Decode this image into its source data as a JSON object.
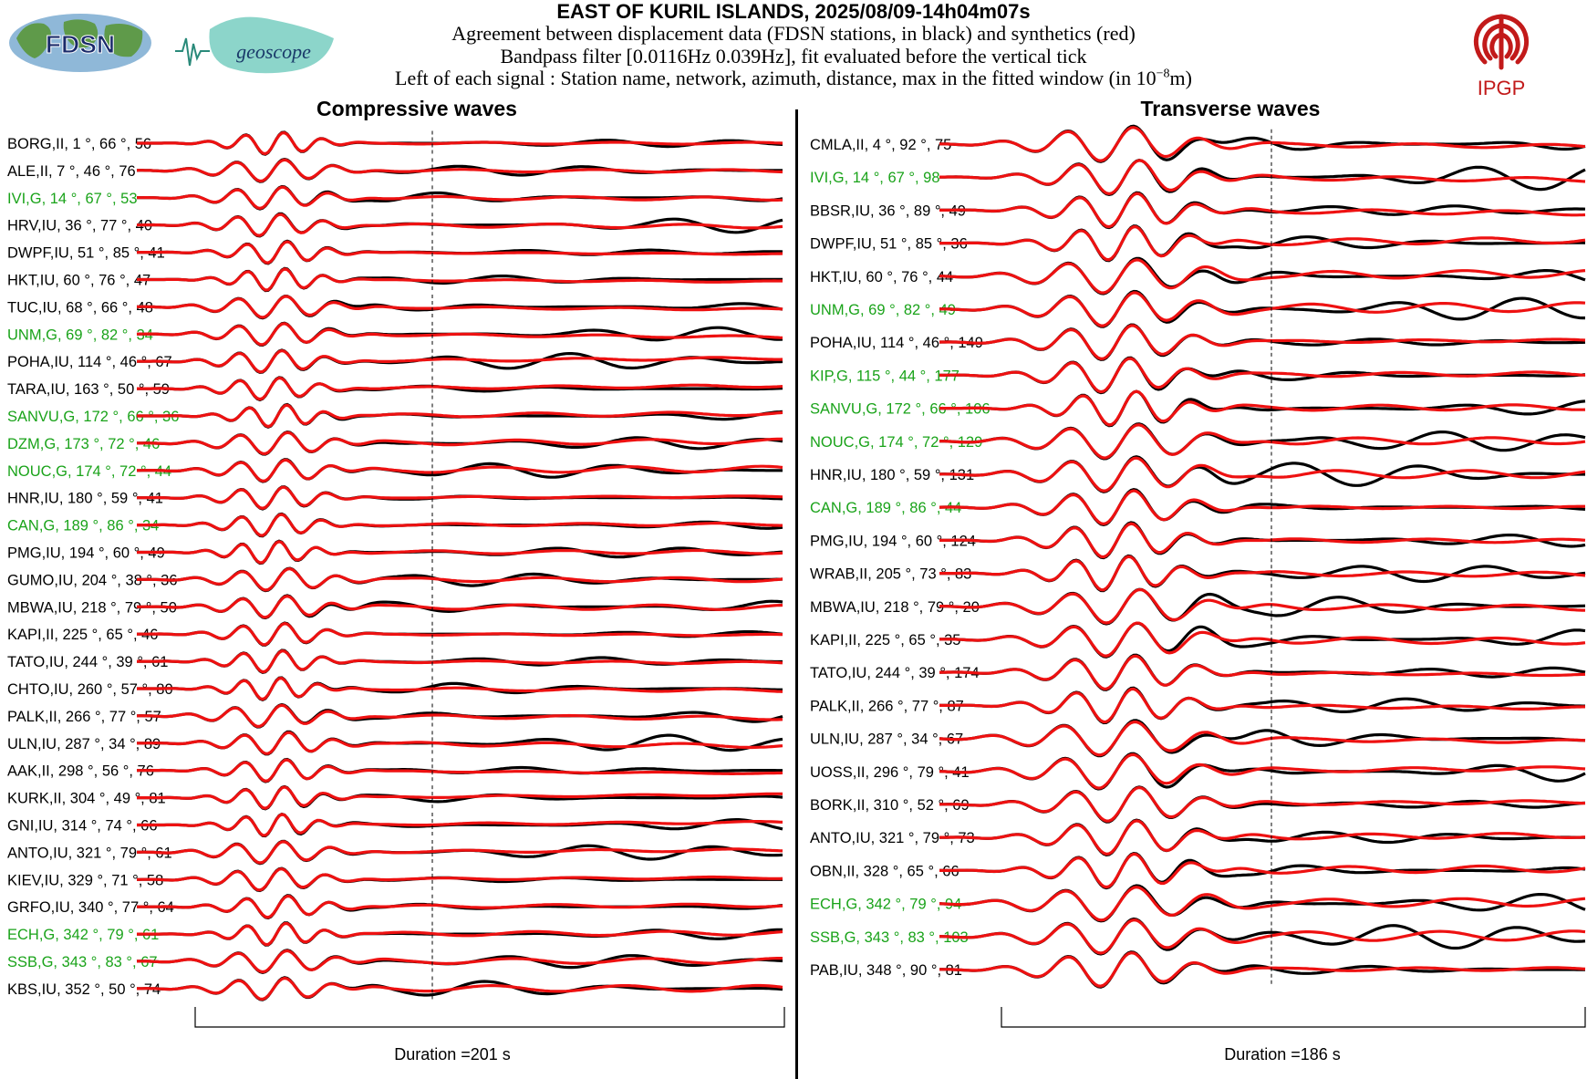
{
  "header": {
    "title": "EAST OF KURIL ISLANDS, 2025/08/09-14h04m07s",
    "line1": "Agreement between displacement data (FDSN stations, in black) and synthetics (red)",
    "line2": "Bandpass filter [0.0116Hz 0.039Hz], fit evaluated before the vertical tick",
    "line3_prefix": "Left of each signal : Station name, network, azimuth, distance, max in the fitted window (in 10",
    "line3_exp": "−8",
    "line3_suffix": "m)"
  },
  "logos": {
    "fdsn": "FDSN",
    "geoscope": "geoscope",
    "ipgp": "IPGP"
  },
  "colors": {
    "data": "#000000",
    "synthetic": "#ee1111",
    "geoscope_station": "#1aa31a",
    "other_station": "#000000",
    "ipgp": "#c21a1a"
  },
  "chart_data": [
    {
      "type": "line",
      "title": "Compressive waves",
      "duration_label": "Duration =201 s",
      "series": [
        {
          "name": "data",
          "color": "#000000"
        },
        {
          "name": "synthetics",
          "color": "#ee1111"
        }
      ],
      "stations": [
        {
          "label": "BORG,II, 1 °, 66 °, 56",
          "net": "II"
        },
        {
          "label": "ALE,II, 7 °, 46 °, 76",
          "net": "II"
        },
        {
          "label": "IVI,G, 14 °, 67 °, 53",
          "net": "G"
        },
        {
          "label": "HRV,IU, 36 °, 77 °, 40",
          "net": "IU"
        },
        {
          "label": "DWPF,IU, 51 °, 85 °, 41",
          "net": "IU"
        },
        {
          "label": "HKT,IU, 60 °, 76 °, 47",
          "net": "IU"
        },
        {
          "label": "TUC,IU, 68 °, 66 °, 48",
          "net": "IU"
        },
        {
          "label": "UNM,G, 69 °, 82 °, 34",
          "net": "G"
        },
        {
          "label": "POHA,IU, 114 °, 46 °, 67",
          "net": "IU"
        },
        {
          "label": "TARA,IU, 163 °, 50 °, 59",
          "net": "IU"
        },
        {
          "label": "SANVU,G, 172 °, 66 °, 36",
          "net": "G"
        },
        {
          "label": "DZM,G, 173 °, 72 °, 46",
          "net": "G"
        },
        {
          "label": "NOUC,G, 174 °, 72 °, 44",
          "net": "G"
        },
        {
          "label": "HNR,IU, 180 °, 59 °, 41",
          "net": "IU"
        },
        {
          "label": "CAN,G, 189 °, 86 °, 34",
          "net": "G"
        },
        {
          "label": "PMG,IU, 194 °, 60 °, 49",
          "net": "IU"
        },
        {
          "label": "GUMO,IU, 204 °, 38 °, 36",
          "net": "IU"
        },
        {
          "label": "MBWA,IU, 218 °, 79 °, 50",
          "net": "IU"
        },
        {
          "label": "KAPI,II, 225 °, 65 °, 46",
          "net": "II"
        },
        {
          "label": "TATO,IU, 244 °, 39 °, 61",
          "net": "IU"
        },
        {
          "label": "CHTO,IU, 260 °, 57 °, 80",
          "net": "IU"
        },
        {
          "label": "PALK,II, 266 °, 77 °, 57",
          "net": "II"
        },
        {
          "label": "ULN,IU, 287 °, 34 °, 89",
          "net": "IU"
        },
        {
          "label": "AAK,II, 298 °, 56 °, 76",
          "net": "II"
        },
        {
          "label": "KURK,II, 304 °, 49 °, 81",
          "net": "II"
        },
        {
          "label": "GNI,IU, 314 °, 74 °, 66",
          "net": "IU"
        },
        {
          "label": "ANTO,IU, 321 °, 79 °, 61",
          "net": "IU"
        },
        {
          "label": "KIEV,IU, 329 °, 71 °, 58",
          "net": "IU"
        },
        {
          "label": "GRFO,IU, 340 °, 77 °, 64",
          "net": "IU"
        },
        {
          "label": "ECH,G, 342 °, 79 °, 61",
          "net": "G"
        },
        {
          "label": "SSB,G, 343 °, 83 °, 67",
          "net": "G"
        },
        {
          "label": "KBS,IU, 352 °, 50 °, 74",
          "net": "IU"
        }
      ]
    },
    {
      "type": "line",
      "title": "Transverse waves",
      "duration_label": "Duration =186 s",
      "series": [
        {
          "name": "data",
          "color": "#000000"
        },
        {
          "name": "synthetics",
          "color": "#ee1111"
        }
      ],
      "stations": [
        {
          "label": "CMLA,II, 4 °, 92 °, 75",
          "net": "II"
        },
        {
          "label": "IVI,G, 14 °, 67 °, 98",
          "net": "G"
        },
        {
          "label": "BBSR,IU, 36 °, 89 °, 49",
          "net": "IU"
        },
        {
          "label": "DWPF,IU, 51 °, 85 °, 36",
          "net": "IU"
        },
        {
          "label": "HKT,IU, 60 °, 76 °, 44",
          "net": "IU"
        },
        {
          "label": "UNM,G, 69 °, 82 °, 49",
          "net": "G"
        },
        {
          "label": "POHA,IU, 114 °, 46 °, 149",
          "net": "IU"
        },
        {
          "label": "KIP,G, 115 °, 44 °, 177",
          "net": "G"
        },
        {
          "label": "SANVU,G, 172 °, 66 °, 106",
          "net": "G"
        },
        {
          "label": "NOUC,G, 174 °, 72 °, 129",
          "net": "G"
        },
        {
          "label": "HNR,IU, 180 °, 59 °, 131",
          "net": "IU"
        },
        {
          "label": "CAN,G, 189 °, 86 °, 44",
          "net": "G"
        },
        {
          "label": "PMG,IU, 194 °, 60 °, 124",
          "net": "IU"
        },
        {
          "label": "WRAB,II, 205 °, 73 °, 83",
          "net": "II"
        },
        {
          "label": "MBWA,IU, 218 °, 79 °, 20",
          "net": "IU"
        },
        {
          "label": "KAPI,II, 225 °, 65 °, 35",
          "net": "II"
        },
        {
          "label": "TATO,IU, 244 °, 39 °, 174",
          "net": "IU"
        },
        {
          "label": "PALK,II, 266 °, 77 °, 87",
          "net": "II"
        },
        {
          "label": "ULN,IU, 287 °, 34 °, 67",
          "net": "IU"
        },
        {
          "label": "UOSS,II, 296 °, 79 °, 41",
          "net": "II"
        },
        {
          "label": "BORK,II, 310 °, 52 °, 69",
          "net": "II"
        },
        {
          "label": "ANTO,IU, 321 °, 79 °, 73",
          "net": "IU"
        },
        {
          "label": "OBN,II, 328 °, 65 °, 66",
          "net": "II"
        },
        {
          "label": "ECH,G, 342 °, 79 °, 94",
          "net": "G"
        },
        {
          "label": "SSB,G, 343 °, 83 °, 103",
          "net": "G"
        },
        {
          "label": "PAB,IU, 348 °, 90 °, 81",
          "net": "IU"
        }
      ]
    }
  ]
}
